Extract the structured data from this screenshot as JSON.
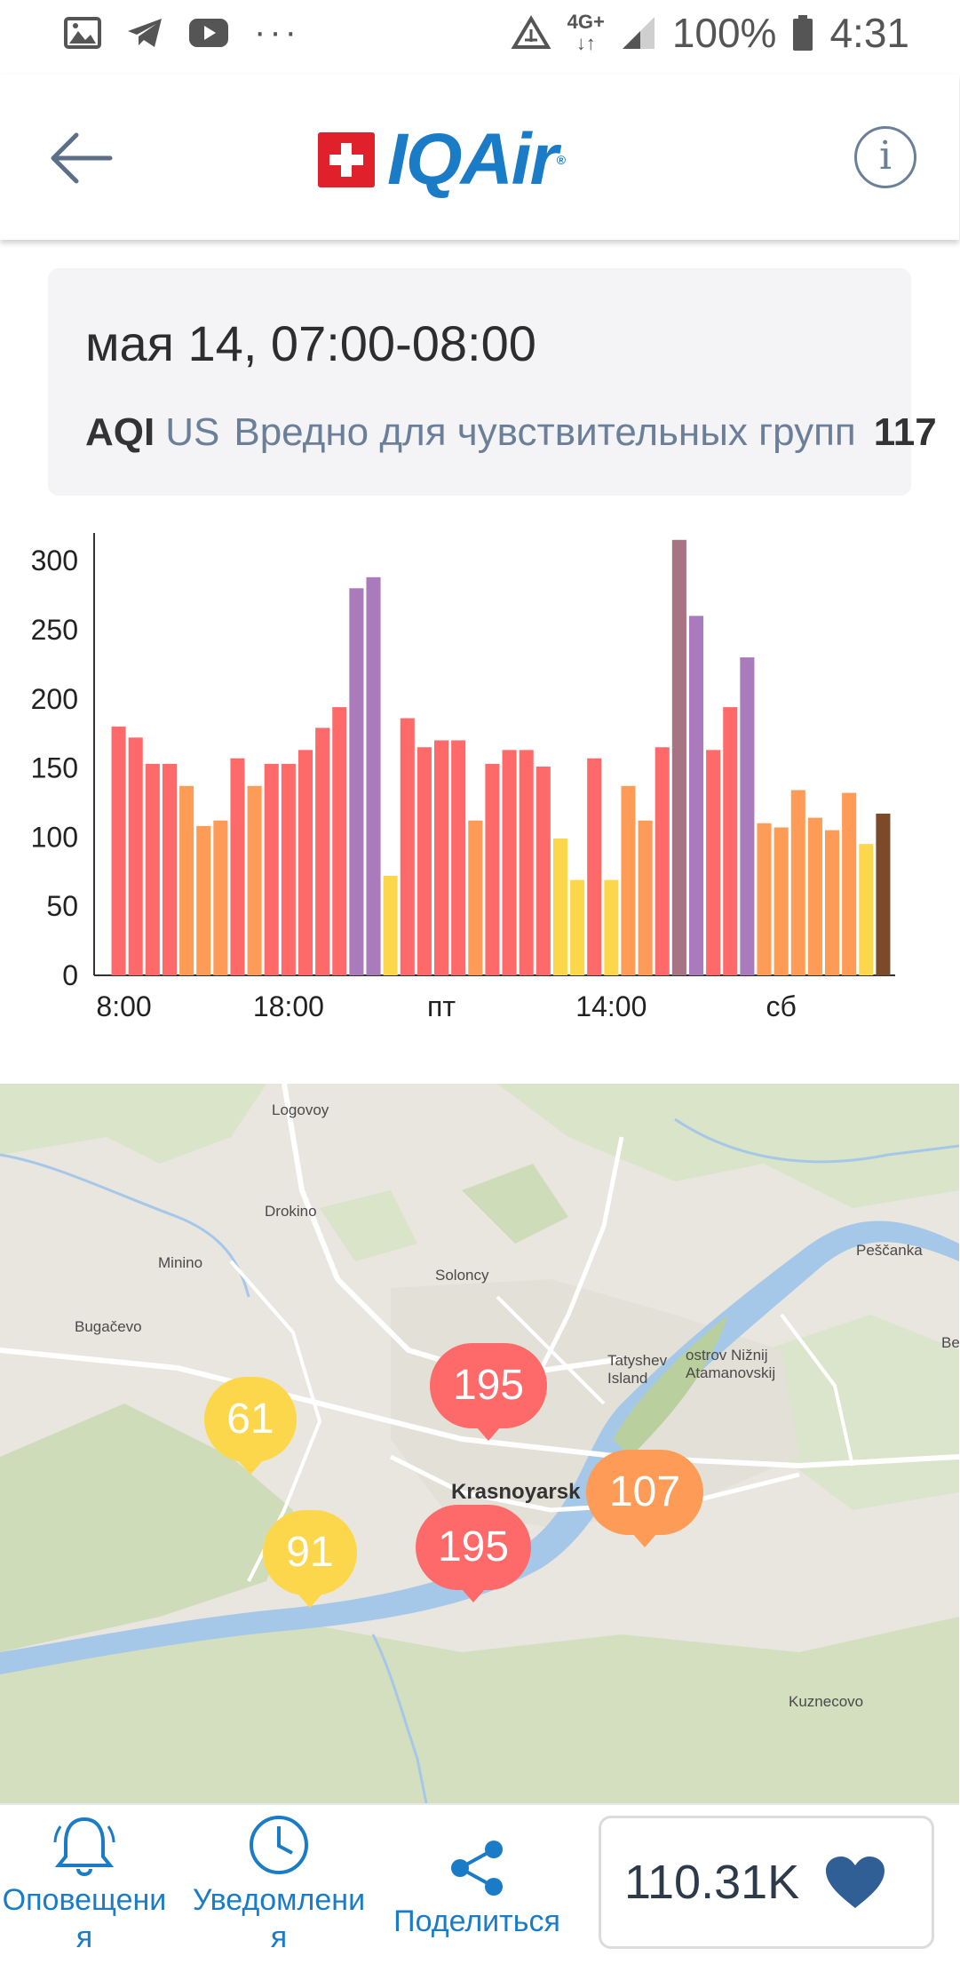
{
  "status_bar": {
    "net": "4G+",
    "battery": "100%",
    "time": "4:31"
  },
  "header": {
    "logo_text": "IQAir",
    "logo_reg": "®"
  },
  "info_card": {
    "date_range": "мая 14, 07:00-08:00",
    "aqi_label": "AQI",
    "aqi_standard": "US",
    "aqi_description": "Вредно для чувствительных групп",
    "aqi_value": "117"
  },
  "chart_data": {
    "type": "bar",
    "title": "",
    "xlabel": "",
    "ylabel": "",
    "ylim": [
      0,
      320
    ],
    "yticks": [
      0,
      50,
      100,
      150,
      200,
      250,
      300
    ],
    "x_tick_labels": [
      "8:00",
      "18:00",
      "пт",
      "14:00",
      "сб"
    ],
    "x_tick_bar_index": [
      0,
      10,
      19,
      29,
      39
    ],
    "values": [
      180,
      172,
      153,
      153,
      137,
      108,
      112,
      157,
      137,
      153,
      153,
      163,
      179,
      194,
      280,
      288,
      72,
      186,
      165,
      170,
      170,
      112,
      153,
      163,
      163,
      151,
      99,
      69,
      157,
      69,
      137,
      112,
      165,
      315,
      260,
      163,
      194,
      230,
      110,
      107,
      134,
      114,
      105,
      132,
      95,
      117
    ],
    "colors": {
      "red": "#fe6a69",
      "orange": "#fe9b57",
      "yellow": "#fdd74b",
      "purple": "#a97abc",
      "maroon": "#a87383",
      "brown": "#7b4a2b"
    },
    "bar_colors": [
      "red",
      "red",
      "red",
      "red",
      "orange",
      "orange",
      "orange",
      "red",
      "orange",
      "red",
      "red",
      "red",
      "red",
      "red",
      "purple",
      "purple",
      "yellow",
      "red",
      "red",
      "red",
      "red",
      "orange",
      "red",
      "red",
      "red",
      "red",
      "yellow",
      "yellow",
      "red",
      "yellow",
      "orange",
      "orange",
      "red",
      "maroon",
      "purple",
      "red",
      "red",
      "purple",
      "orange",
      "orange",
      "orange",
      "orange",
      "orange",
      "orange",
      "yellow",
      "brown"
    ],
    "grid": false
  },
  "map": {
    "labels": {
      "logovoy": "Logovoy",
      "drokino": "Drokino",
      "minino": "Minino",
      "soloncy": "Soloncy",
      "bugacevo": "Bugačevo",
      "pescanka": "Peščanka",
      "tatyshev": "Tatyshev Island",
      "ostrov": "ostrov Nižnij Atamanovskij",
      "be": "Be",
      "kuznecovo": "Kuznecovo",
      "city": "Krasnoyarsk"
    },
    "stations": [
      {
        "value": "61",
        "color": "#fdd74b"
      },
      {
        "value": "195",
        "color": "#fe6a69"
      },
      {
        "value": "107",
        "color": "#fe9b57"
      },
      {
        "value": "195",
        "color": "#fe6a69"
      },
      {
        "value": "91",
        "color": "#fdd74b"
      }
    ]
  },
  "bottom_nav": {
    "alerts_label": "Оповещения",
    "notifications_label": "Уведомления",
    "share_label": "Поделиться",
    "likes_count": "110.31K"
  }
}
